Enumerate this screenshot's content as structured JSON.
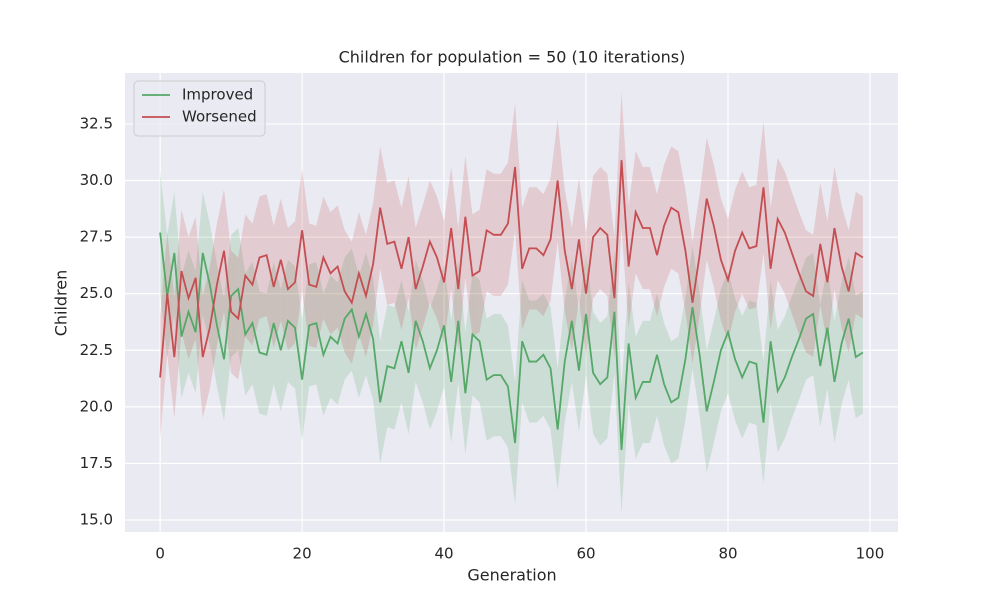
{
  "chart_data": {
    "type": "line",
    "title": "Children for population = 50 (10 iterations)",
    "x_label": "Generation",
    "y_label": "Children",
    "x": [
      0,
      1,
      2,
      3,
      4,
      5,
      6,
      7,
      8,
      9,
      10,
      11,
      12,
      13,
      14,
      15,
      16,
      17,
      18,
      19,
      20,
      21,
      22,
      23,
      24,
      25,
      26,
      27,
      28,
      29,
      30,
      31,
      32,
      33,
      34,
      35,
      36,
      37,
      38,
      39,
      40,
      41,
      42,
      43,
      44,
      45,
      46,
      47,
      48,
      49,
      50,
      51,
      52,
      53,
      54,
      55,
      56,
      57,
      58,
      59,
      60,
      61,
      62,
      63,
      64,
      65,
      66,
      67,
      68,
      69,
      70,
      71,
      72,
      73,
      74,
      75,
      76,
      77,
      78,
      79,
      80,
      81,
      82,
      83,
      84,
      85,
      86,
      87,
      88,
      89,
      90,
      91,
      92,
      93,
      94,
      95,
      96,
      97,
      98,
      99
    ],
    "series": [
      {
        "name": "Improved",
        "color": "#55a868",
        "values": [
          27.7,
          24.9,
          26.8,
          23.1,
          24.2,
          23.3,
          26.8,
          25.4,
          23.6,
          22.1,
          24.9,
          25.2,
          23.2,
          23.7,
          22.4,
          22.3,
          23.7,
          22.5,
          23.8,
          23.5,
          21.2,
          23.6,
          23.7,
          22.3,
          23.1,
          22.8,
          23.9,
          24.3,
          23.1,
          24.1,
          23.0,
          20.2,
          21.8,
          21.7,
          22.9,
          21.5,
          23.8,
          22.9,
          21.7,
          22.5,
          23.6,
          21.1,
          23.8,
          20.6,
          23.2,
          22.9,
          21.2,
          21.4,
          21.4,
          20.9,
          18.4,
          22.9,
          22.0,
          22.0,
          22.3,
          21.7,
          19.0,
          22.0,
          23.8,
          21.6,
          24.1,
          21.5,
          21.0,
          21.3,
          24.2,
          18.1,
          22.8,
          20.4,
          21.1,
          21.1,
          22.3,
          21.0,
          20.2,
          20.4,
          22.1,
          24.4,
          22.3,
          19.8,
          21.1,
          22.5,
          23.3,
          22.1,
          21.3,
          22.0,
          21.9,
          19.3,
          22.9,
          20.7,
          21.3,
          22.2,
          23.0,
          23.9,
          24.1,
          21.8,
          23.5,
          21.1,
          22.8,
          23.9,
          22.2,
          22.4
        ],
        "ci": [
          2.7,
          2.7,
          2.7,
          2.7,
          2.7,
          2.7,
          2.7,
          2.7,
          2.7,
          2.7,
          2.7,
          2.7,
          2.7,
          2.7,
          2.7,
          2.7,
          2.7,
          2.7,
          2.7,
          2.7,
          2.7,
          2.7,
          2.7,
          2.7,
          2.7,
          2.7,
          2.7,
          2.7,
          2.7,
          2.7,
          2.7,
          2.7,
          2.7,
          2.7,
          2.7,
          2.7,
          2.7,
          2.7,
          2.7,
          2.7,
          2.7,
          2.7,
          2.7,
          2.7,
          2.7,
          2.7,
          2.7,
          2.7,
          2.7,
          2.7,
          2.7,
          2.7,
          2.7,
          2.7,
          2.7,
          2.7,
          2.7,
          2.7,
          2.7,
          2.7,
          2.7,
          2.7,
          2.7,
          2.7,
          2.7,
          2.8,
          2.7,
          2.7,
          2.7,
          2.7,
          2.7,
          2.7,
          2.7,
          2.7,
          2.7,
          2.7,
          2.7,
          2.7,
          2.7,
          2.7,
          2.7,
          2.7,
          2.7,
          2.7,
          2.7,
          2.7,
          2.7,
          2.7,
          2.7,
          2.7,
          2.7,
          2.7,
          2.7,
          2.7,
          2.7,
          2.7,
          2.7,
          2.7,
          2.7,
          2.7
        ]
      },
      {
        "name": "Worsened",
        "color": "#c44e52",
        "values": [
          21.3,
          25.0,
          22.2,
          26.0,
          24.8,
          25.7,
          22.2,
          23.5,
          25.4,
          26.9,
          24.2,
          23.9,
          25.8,
          25.4,
          26.6,
          26.7,
          25.3,
          26.5,
          25.2,
          25.5,
          27.8,
          25.4,
          25.3,
          26.6,
          25.9,
          26.2,
          25.1,
          24.6,
          25.9,
          24.9,
          26.3,
          28.8,
          27.2,
          27.3,
          26.1,
          27.5,
          25.2,
          26.2,
          27.3,
          26.6,
          25.5,
          27.9,
          25.2,
          28.4,
          25.8,
          26.0,
          27.8,
          27.6,
          27.6,
          28.1,
          30.6,
          26.1,
          27.0,
          27.0,
          26.7,
          27.4,
          30.0,
          26.9,
          25.2,
          27.4,
          25.0,
          27.5,
          27.9,
          27.6,
          24.8,
          30.9,
          26.2,
          28.6,
          27.9,
          27.9,
          26.7,
          28.0,
          28.8,
          28.6,
          26.9,
          24.6,
          26.7,
          29.2,
          28.0,
          26.5,
          25.6,
          26.9,
          27.7,
          27.0,
          27.1,
          29.7,
          26.1,
          28.3,
          27.7,
          26.8,
          25.9,
          25.1,
          24.9,
          27.2,
          25.5,
          27.9,
          26.2,
          25.1,
          26.8,
          26.6
        ],
        "ci": [
          2.7,
          2.7,
          2.7,
          2.7,
          2.7,
          2.7,
          2.7,
          2.7,
          2.7,
          2.7,
          2.7,
          2.7,
          2.7,
          2.7,
          2.7,
          2.7,
          2.7,
          2.7,
          2.7,
          2.7,
          2.7,
          2.7,
          2.7,
          2.7,
          2.7,
          2.7,
          2.7,
          2.7,
          2.7,
          2.7,
          2.7,
          2.7,
          2.7,
          2.7,
          2.7,
          2.7,
          2.7,
          2.7,
          2.7,
          2.7,
          2.7,
          2.7,
          2.7,
          2.7,
          2.7,
          2.7,
          2.7,
          2.7,
          2.7,
          2.7,
          2.8,
          2.7,
          2.7,
          2.7,
          2.7,
          2.7,
          2.7,
          2.7,
          2.7,
          2.7,
          2.7,
          2.7,
          2.7,
          2.7,
          2.7,
          3.0,
          2.7,
          2.7,
          2.7,
          2.7,
          2.7,
          2.7,
          2.7,
          2.7,
          2.7,
          2.7,
          2.7,
          2.7,
          2.7,
          2.7,
          2.7,
          2.7,
          2.7,
          2.7,
          2.7,
          2.9,
          2.7,
          2.7,
          2.7,
          2.7,
          2.7,
          2.7,
          2.7,
          2.7,
          2.7,
          2.7,
          2.7,
          2.7,
          2.7,
          2.7
        ]
      }
    ],
    "xlim": [
      -4.95,
      103.95
    ],
    "xticks": [
      0,
      20,
      40,
      60,
      80,
      100
    ],
    "ylim": [
      14.47,
      34.75
    ],
    "yticks": [
      {
        "value": 15,
        "label": "15.0"
      },
      17.5,
      {
        "value": 20,
        "label": "20.0"
      },
      22.5,
      {
        "value": 25,
        "label": "25.0"
      },
      27.5,
      {
        "value": 30,
        "label": "30.0"
      },
      32.5
    ],
    "grid": true,
    "legend": "upper left"
  }
}
